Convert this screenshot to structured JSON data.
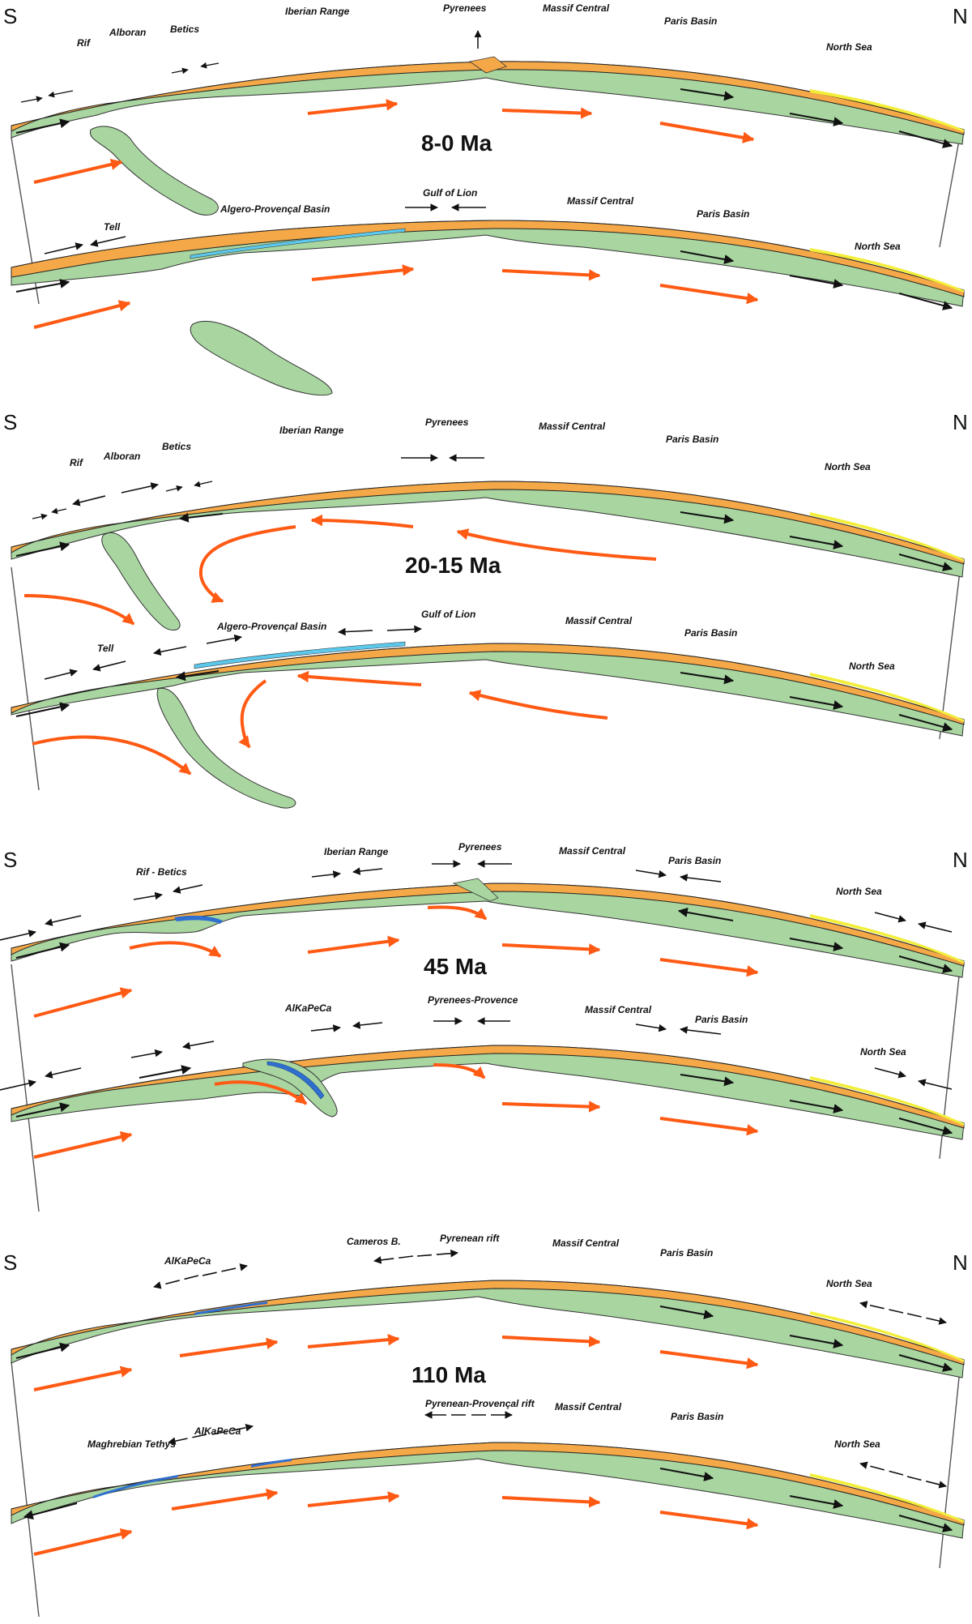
{
  "directions": {
    "south": "S",
    "north": "N"
  },
  "colors": {
    "mantle": "#a8d5a0",
    "crust": "#f5a847",
    "oceanic": "#5cc8ec",
    "tethys": "#2f6fd0",
    "flow_arrow": "#ff5a14",
    "stress_arrow": "#111111",
    "outline": "#333333",
    "sediment": "#f2ee3a"
  },
  "panels": [
    {
      "age": "8-0 Ma",
      "sections": [
        {
          "labels": [
            "Rif",
            "Alboran",
            "Betics",
            "Iberian Range",
            "Pyrenees",
            "Massif Central",
            "Paris Basin",
            "North Sea"
          ]
        },
        {
          "labels": [
            "Tell",
            "Algero-Provençal Basin",
            "Gulf of Lion",
            "Massif Central",
            "Paris Basin",
            "North Sea"
          ]
        }
      ]
    },
    {
      "age": "20-15 Ma",
      "sections": [
        {
          "labels": [
            "Rif",
            "Alboran",
            "Betics",
            "Iberian Range",
            "Pyrenees",
            "Massif Central",
            "Paris Basin",
            "North Sea"
          ]
        },
        {
          "labels": [
            "Tell",
            "Algero-Provençal Basin",
            "Gulf of Lion",
            "Massif Central",
            "Paris Basin",
            "North Sea"
          ]
        }
      ]
    },
    {
      "age": "45 Ma",
      "sections": [
        {
          "labels": [
            "Rif - Betics",
            "Iberian Range",
            "Pyrenees",
            "Massif Central",
            "Paris Basin",
            "North Sea"
          ]
        },
        {
          "labels": [
            "AlKaPeCa",
            "Pyrenees-Provence",
            "Massif Central",
            "Paris Basin",
            "North Sea"
          ]
        }
      ]
    },
    {
      "age": "110 Ma",
      "sections": [
        {
          "labels": [
            "AlKaPeCa",
            "Cameros B.",
            "Pyrenean rift",
            "Massif Central",
            "Paris Basin",
            "North Sea"
          ]
        },
        {
          "labels": [
            "Maghrebian Tethys",
            "AlKaPeCa",
            "Pyrenean-Provençal rift",
            "Massif Central",
            "Paris Basin",
            "North Sea"
          ]
        }
      ]
    }
  ]
}
